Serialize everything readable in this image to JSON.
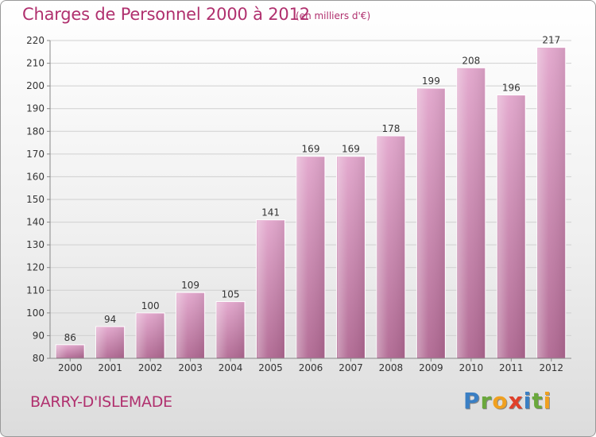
{
  "title": "Charges de Personnel 2000 à 2012",
  "subtitle": "(en milliers d'€)",
  "commune": "BARRY-D'ISLEMADE",
  "logo": {
    "letters": [
      "P",
      "r",
      "o",
      "x",
      "i",
      "t",
      "i"
    ],
    "colors": [
      "#3a7fc4",
      "#6aa83c",
      "#f0a020",
      "#e0402a",
      "#3a7fc4",
      "#6aa83c",
      "#f0a020"
    ]
  },
  "colors": {
    "bar_top": "#e2a6cc",
    "bar_bottom": "#b06892",
    "text": "#b0306e"
  },
  "chart_data": {
    "type": "bar",
    "categories": [
      "2000",
      "2001",
      "2002",
      "2003",
      "2004",
      "2005",
      "2006",
      "2007",
      "2008",
      "2009",
      "2010",
      "2011",
      "2012"
    ],
    "values": [
      86,
      94,
      100,
      109,
      105,
      141,
      169,
      169,
      178,
      199,
      208,
      196,
      217
    ],
    "title": "Charges de Personnel 2000 à 2012",
    "subtitle": "(en milliers d'€)",
    "xlabel": "",
    "ylabel": "",
    "ylim": [
      80,
      220
    ],
    "yticks": [
      80,
      90,
      100,
      110,
      120,
      130,
      140,
      150,
      160,
      170,
      180,
      190,
      200,
      210,
      220
    ],
    "grid": true,
    "data_labels": true
  }
}
